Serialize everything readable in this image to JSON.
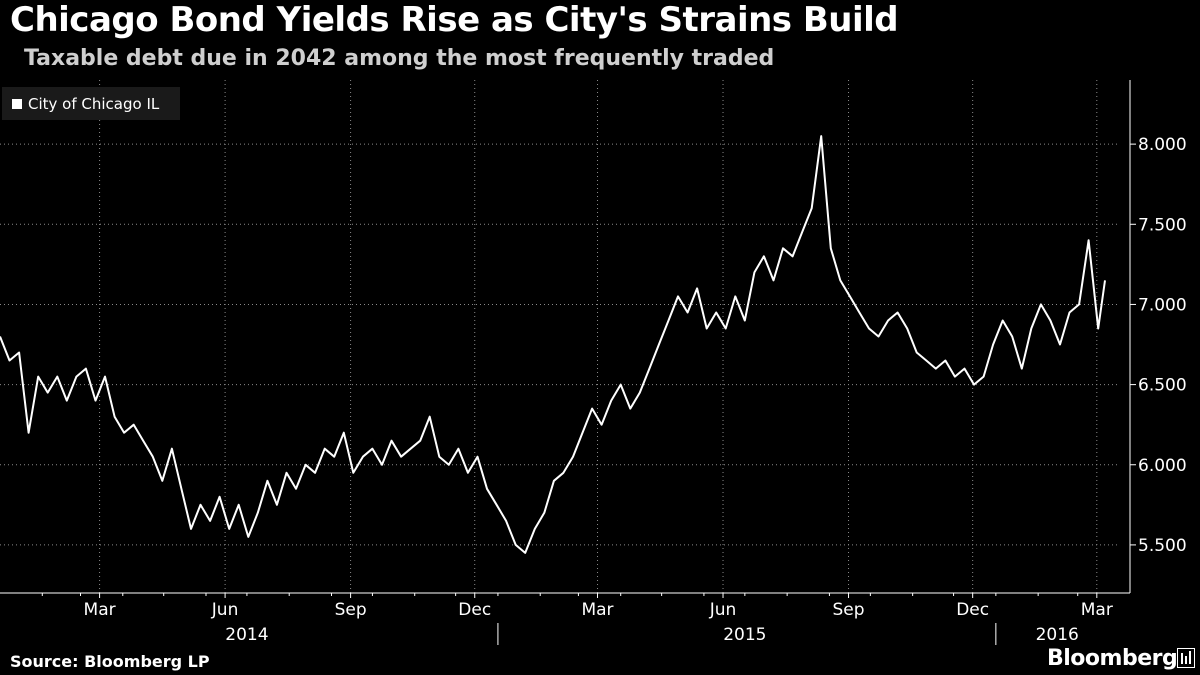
{
  "chart_data": {
    "type": "line",
    "title": "Chicago Bond Yields Rise as City's Strains Build",
    "subtitle": "Taxable debt due in 2042 among the most frequently traded",
    "legend_position": "top-left",
    "grid": true,
    "series": [
      {
        "name": "City of Chicago IL",
        "color": "#ffffff",
        "points": [
          [
            "2014-01-01",
            6.8
          ],
          [
            "2014-01-08",
            6.65
          ],
          [
            "2014-01-15",
            6.7
          ],
          [
            "2014-01-22",
            6.2
          ],
          [
            "2014-01-29",
            6.55
          ],
          [
            "2014-02-05",
            6.45
          ],
          [
            "2014-02-12",
            6.55
          ],
          [
            "2014-02-19",
            6.4
          ],
          [
            "2014-02-26",
            6.55
          ],
          [
            "2014-03-05",
            6.6
          ],
          [
            "2014-03-12",
            6.4
          ],
          [
            "2014-03-19",
            6.55
          ],
          [
            "2014-03-26",
            6.3
          ],
          [
            "2014-04-02",
            6.2
          ],
          [
            "2014-04-09",
            6.25
          ],
          [
            "2014-04-16",
            6.15
          ],
          [
            "2014-04-23",
            6.05
          ],
          [
            "2014-04-30",
            5.9
          ],
          [
            "2014-05-07",
            6.1
          ],
          [
            "2014-05-14",
            5.85
          ],
          [
            "2014-05-21",
            5.6
          ],
          [
            "2014-05-28",
            5.75
          ],
          [
            "2014-06-04",
            5.65
          ],
          [
            "2014-06-11",
            5.8
          ],
          [
            "2014-06-18",
            5.6
          ],
          [
            "2014-06-25",
            5.75
          ],
          [
            "2014-07-02",
            5.55
          ],
          [
            "2014-07-09",
            5.7
          ],
          [
            "2014-07-16",
            5.9
          ],
          [
            "2014-07-23",
            5.75
          ],
          [
            "2014-07-30",
            5.95
          ],
          [
            "2014-08-06",
            5.85
          ],
          [
            "2014-08-13",
            6.0
          ],
          [
            "2014-08-20",
            5.95
          ],
          [
            "2014-08-27",
            6.1
          ],
          [
            "2014-09-03",
            6.05
          ],
          [
            "2014-09-10",
            6.2
          ],
          [
            "2014-09-17",
            5.95
          ],
          [
            "2014-09-24",
            6.05
          ],
          [
            "2014-10-01",
            6.1
          ],
          [
            "2014-10-08",
            6.0
          ],
          [
            "2014-10-15",
            6.15
          ],
          [
            "2014-10-22",
            6.05
          ],
          [
            "2014-10-29",
            6.1
          ],
          [
            "2014-11-05",
            6.15
          ],
          [
            "2014-11-12",
            6.3
          ],
          [
            "2014-11-19",
            6.05
          ],
          [
            "2014-11-26",
            6.0
          ],
          [
            "2014-12-03",
            6.1
          ],
          [
            "2014-12-10",
            5.95
          ],
          [
            "2014-12-17",
            6.05
          ],
          [
            "2014-12-24",
            5.85
          ],
          [
            "2014-12-31",
            5.75
          ],
          [
            "2015-01-07",
            5.65
          ],
          [
            "2015-01-14",
            5.5
          ],
          [
            "2015-01-21",
            5.45
          ],
          [
            "2015-01-28",
            5.6
          ],
          [
            "2015-02-04",
            5.7
          ],
          [
            "2015-02-11",
            5.9
          ],
          [
            "2015-02-18",
            5.95
          ],
          [
            "2015-02-25",
            6.05
          ],
          [
            "2015-03-04",
            6.2
          ],
          [
            "2015-03-11",
            6.35
          ],
          [
            "2015-03-18",
            6.25
          ],
          [
            "2015-03-25",
            6.4
          ],
          [
            "2015-04-01",
            6.5
          ],
          [
            "2015-04-08",
            6.35
          ],
          [
            "2015-04-15",
            6.45
          ],
          [
            "2015-04-22",
            6.6
          ],
          [
            "2015-04-29",
            6.75
          ],
          [
            "2015-05-06",
            6.9
          ],
          [
            "2015-05-13",
            7.05
          ],
          [
            "2015-05-20",
            6.95
          ],
          [
            "2015-05-27",
            7.1
          ],
          [
            "2015-06-03",
            6.85
          ],
          [
            "2015-06-10",
            6.95
          ],
          [
            "2015-06-17",
            6.85
          ],
          [
            "2015-06-24",
            7.05
          ],
          [
            "2015-07-01",
            6.9
          ],
          [
            "2015-07-08",
            7.2
          ],
          [
            "2015-07-15",
            7.3
          ],
          [
            "2015-07-22",
            7.15
          ],
          [
            "2015-07-29",
            7.35
          ],
          [
            "2015-08-05",
            7.3
          ],
          [
            "2015-08-12",
            7.45
          ],
          [
            "2015-08-19",
            7.6
          ],
          [
            "2015-08-26",
            8.05
          ],
          [
            "2015-09-02",
            7.35
          ],
          [
            "2015-09-09",
            7.15
          ],
          [
            "2015-09-16",
            7.05
          ],
          [
            "2015-09-23",
            6.95
          ],
          [
            "2015-09-30",
            6.85
          ],
          [
            "2015-10-07",
            6.8
          ],
          [
            "2015-10-14",
            6.9
          ],
          [
            "2015-10-21",
            6.95
          ],
          [
            "2015-10-28",
            6.85
          ],
          [
            "2015-11-04",
            6.7
          ],
          [
            "2015-11-11",
            6.65
          ],
          [
            "2015-11-18",
            6.6
          ],
          [
            "2015-11-25",
            6.65
          ],
          [
            "2015-12-02",
            6.55
          ],
          [
            "2015-12-09",
            6.6
          ],
          [
            "2015-12-16",
            6.5
          ],
          [
            "2015-12-23",
            6.55
          ],
          [
            "2015-12-30",
            6.75
          ],
          [
            "2016-01-06",
            6.9
          ],
          [
            "2016-01-13",
            6.8
          ],
          [
            "2016-01-20",
            6.6
          ],
          [
            "2016-01-27",
            6.85
          ],
          [
            "2016-02-03",
            7.0
          ],
          [
            "2016-02-10",
            6.9
          ],
          [
            "2016-02-17",
            6.75
          ],
          [
            "2016-02-24",
            6.95
          ],
          [
            "2016-03-02",
            7.0
          ],
          [
            "2016-03-09",
            7.4
          ],
          [
            "2016-03-16",
            6.85
          ],
          [
            "2016-03-21",
            7.15
          ]
        ]
      }
    ],
    "x_axis": {
      "type": "date",
      "range": [
        "2014-01-01",
        "2016-04-01"
      ],
      "tick_labels": [
        {
          "label": "Mar",
          "date": "2014-03-15"
        },
        {
          "label": "Jun",
          "date": "2014-06-15"
        },
        {
          "label": "Sep",
          "date": "2014-09-15"
        },
        {
          "label": "Dec",
          "date": "2014-12-15"
        },
        {
          "label": "Mar",
          "date": "2015-03-15"
        },
        {
          "label": "Jun",
          "date": "2015-06-15"
        },
        {
          "label": "Sep",
          "date": "2015-09-15"
        },
        {
          "label": "Dec",
          "date": "2015-12-15"
        },
        {
          "label": "Mar",
          "date": "2016-03-15"
        }
      ],
      "year_labels": [
        {
          "label": "2014",
          "date": "2014-07-01"
        },
        {
          "label": "2015",
          "date": "2015-07-01"
        },
        {
          "label": "2016",
          "date": "2016-02-15"
        }
      ],
      "year_dividers": [
        "2015-01-01",
        "2016-01-01"
      ]
    },
    "y_axis": {
      "position": "right",
      "ylim": [
        5.2,
        8.4
      ],
      "ticks": [
        5.5,
        6.0,
        6.5,
        7.0,
        7.5,
        8.0
      ],
      "tick_labels": [
        "5.500",
        "6.000",
        "6.500",
        "7.000",
        "7.500",
        "8.000"
      ]
    }
  },
  "footer": {
    "source": "Source: Bloomberg LP",
    "brand": "Bloomberg"
  }
}
